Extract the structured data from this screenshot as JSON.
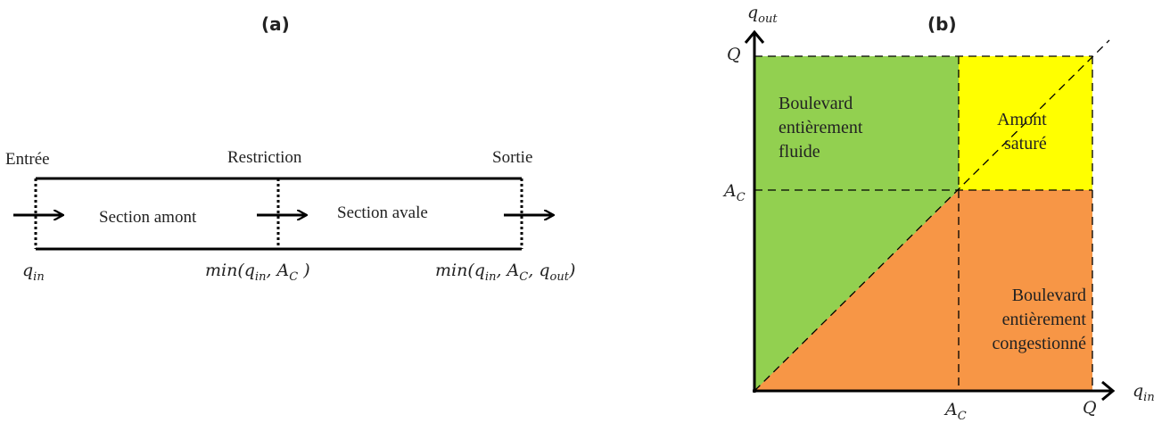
{
  "panel_a": {
    "title": "(a)",
    "label_entree": "Entrée",
    "label_restriction": "Restriction",
    "label_sortie": "Sortie",
    "section_amont": "Section amont",
    "section_avale": "Section avale",
    "flow_in": {
      "var": "q",
      "sub": "in"
    },
    "flow_restriction": {
      "pre": "min(",
      "v1": "q",
      "s1": "in",
      "sep1": ", ",
      "v2": "A",
      "s2": "C",
      "post": " )"
    },
    "flow_out": {
      "pre": "min(",
      "v1": "q",
      "s1": "in",
      "sep1": ", ",
      "v2": "A",
      "s2": "C",
      "sep2": ", ",
      "v3": "q",
      "s3": "out",
      "post": ")"
    }
  },
  "panel_b": {
    "title": "(b)",
    "y_axis": {
      "var": "q",
      "sub": "out"
    },
    "x_axis": {
      "var": "q",
      "sub": "in"
    },
    "tick_Q_y": "Q",
    "tick_Ac_y": {
      "var": "A",
      "sub": "C"
    },
    "tick_Q_x": "Q",
    "tick_Ac_x": {
      "var": "A",
      "sub": "C"
    },
    "regions": {
      "fluid": {
        "lines": [
          "Boulevard",
          "entièrement",
          "fluide"
        ],
        "color": "#92d050"
      },
      "saturated": {
        "lines": [
          "Amont",
          "saturé"
        ],
        "color": "#ffff00"
      },
      "congested": {
        "lines": [
          "Boulevard",
          "entièrement",
          "congestionné"
        ],
        "color": "#f79646"
      }
    }
  }
}
